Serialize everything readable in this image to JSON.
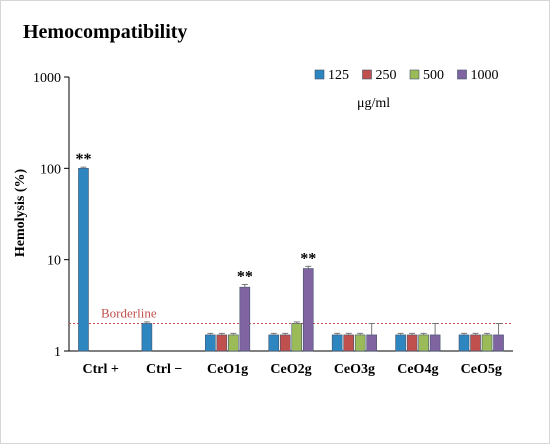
{
  "chart_data": {
    "type": "bar",
    "title": "Hemocompatibility",
    "ylabel": "Hemolysis (%)",
    "xlabel": "",
    "yscale": "log",
    "ylim": [
      1,
      1000
    ],
    "yticks": [
      "1",
      "10",
      "100",
      "1000"
    ],
    "yticks_values": [
      1,
      10,
      100,
      1000
    ],
    "grid": false,
    "legend_position": "top-right",
    "legend_unit": "μg/ml",
    "categories": [
      "Ctrl +",
      "Ctrl −",
      "CeO1g",
      "CeO2g",
      "CeO3g",
      "CeO4g",
      "CeO5g"
    ],
    "series": [
      {
        "name": "125",
        "color": "#2e86c1",
        "values": [
          100,
          2.0,
          1.5,
          1.5,
          1.5,
          1.5,
          1.5
        ],
        "errors": [
          3,
          0.08,
          0.06,
          0.06,
          0.06,
          0.06,
          0.06
        ]
      },
      {
        "name": "250",
        "color": "#c0504d",
        "values": [
          null,
          null,
          1.5,
          1.5,
          1.5,
          1.5,
          1.5
        ],
        "errors": [
          null,
          null,
          0.06,
          0.06,
          0.06,
          0.06,
          0.06
        ]
      },
      {
        "name": "500",
        "color": "#9bbb59",
        "values": [
          null,
          null,
          1.5,
          2.0,
          1.5,
          1.5,
          1.5
        ],
        "errors": [
          null,
          null,
          0.06,
          0.08,
          0.06,
          0.06,
          0.06
        ]
      },
      {
        "name": "1000",
        "color": "#8064a2",
        "values": [
          null,
          null,
          5.0,
          8.0,
          1.5,
          1.5,
          1.5
        ],
        "errors": [
          null,
          null,
          0.35,
          0.45,
          0.5,
          0.5,
          0.5
        ]
      }
    ],
    "reference_line": {
      "label": "Borderline",
      "value": 2.0,
      "color": "#c0504d"
    },
    "annotations": [
      {
        "text": "**",
        "category": 0,
        "series": 0
      },
      {
        "text": "**",
        "category": 2,
        "series": 3
      },
      {
        "text": "**",
        "category": 3,
        "series": 3
      }
    ]
  }
}
